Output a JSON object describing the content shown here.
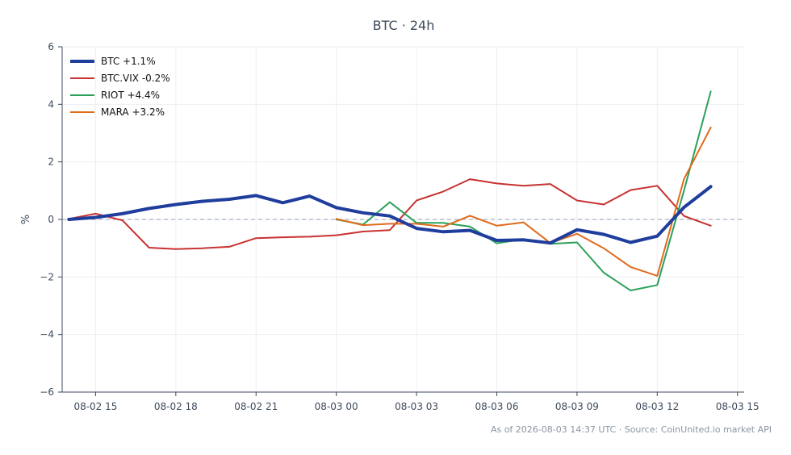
{
  "chart_data": {
    "type": "line",
    "title": "BTC · 24h",
    "xlabel": "",
    "ylabel": "%",
    "ylim": [
      -6,
      6
    ],
    "yticks": [
      -6,
      -4,
      -2,
      0,
      2,
      4,
      6
    ],
    "ytick_labels": [
      "−6",
      "−4",
      "−2",
      "0",
      "2",
      "4",
      "6"
    ],
    "xlim": [
      "2026-08-02 13:45",
      "2026-08-03 15:15"
    ],
    "xticks": [
      "2026-08-02 15:00",
      "2026-08-02 18:00",
      "2026-08-02 21:00",
      "2026-08-03 00:00",
      "2026-08-03 03:00",
      "2026-08-03 06:00",
      "2026-08-03 09:00",
      "2026-08-03 12:00",
      "2026-08-03 15:00"
    ],
    "xtick_labels": [
      "08-02 15",
      "08-02 18",
      "08-02 21",
      "08-03 00",
      "08-03 03",
      "08-03 06",
      "08-03 09",
      "08-03 12",
      "08-03 15"
    ],
    "grid": true,
    "zero_line": true,
    "legend_position": "top-left",
    "series": [
      {
        "name": "BTC +1.1%",
        "color": "#1f3d9c",
        "emphasis": true,
        "x": [
          "2026-08-02 14:00",
          "2026-08-02 15:00",
          "2026-08-02 16:00",
          "2026-08-02 17:00",
          "2026-08-02 18:00",
          "2026-08-02 19:00",
          "2026-08-02 20:00",
          "2026-08-02 21:00",
          "2026-08-02 22:00",
          "2026-08-02 23:00",
          "2026-08-03 00:00",
          "2026-08-03 01:00",
          "2026-08-03 02:00",
          "2026-08-03 03:00",
          "2026-08-03 04:00",
          "2026-08-03 05:00",
          "2026-08-03 06:00",
          "2026-08-03 07:00",
          "2026-08-03 08:00",
          "2026-08-03 09:00",
          "2026-08-03 10:00",
          "2026-08-03 11:00",
          "2026-08-03 12:00",
          "2026-08-03 13:00",
          "2026-08-03 14:00"
        ],
        "values": [
          0.0,
          0.07,
          0.2,
          0.38,
          0.52,
          0.63,
          0.7,
          0.83,
          0.58,
          0.81,
          0.41,
          0.23,
          0.12,
          -0.31,
          -0.43,
          -0.38,
          -0.73,
          -0.71,
          -0.82,
          -0.36,
          -0.52,
          -0.8,
          -0.58,
          0.42,
          1.14
        ]
      },
      {
        "name": "BTC.VIX -0.2%",
        "color": "#c83232",
        "x": [
          "2026-08-02 14:00",
          "2026-08-02 15:00",
          "2026-08-02 16:00",
          "2026-08-02 17:00",
          "2026-08-02 18:00",
          "2026-08-02 19:00",
          "2026-08-02 20:00",
          "2026-08-02 21:00",
          "2026-08-02 22:00",
          "2026-08-02 23:00",
          "2026-08-03 00:00",
          "2026-08-03 01:00",
          "2026-08-03 02:00",
          "2026-08-03 03:00",
          "2026-08-03 04:00",
          "2026-08-03 05:00",
          "2026-08-03 06:00",
          "2026-08-03 07:00",
          "2026-08-03 08:00",
          "2026-08-03 09:00",
          "2026-08-03 10:00",
          "2026-08-03 11:00",
          "2026-08-03 12:00",
          "2026-08-03 13:00",
          "2026-08-03 14:00"
        ],
        "values": [
          0.02,
          0.2,
          -0.03,
          -0.98,
          -1.03,
          -1.0,
          -0.95,
          -0.65,
          -0.62,
          -0.6,
          -0.55,
          -0.42,
          -0.37,
          0.66,
          0.97,
          1.4,
          1.25,
          1.17,
          1.23,
          0.66,
          0.52,
          1.02,
          1.17,
          0.12,
          -0.22
        ]
      },
      {
        "name": "RIOT +4.4%",
        "color": "#2ca05a",
        "x": [
          "2026-08-03 00:00",
          "2026-08-03 01:00",
          "2026-08-03 02:00",
          "2026-08-03 03:00",
          "2026-08-03 04:00",
          "2026-08-03 05:00",
          "2026-08-03 06:00",
          "2026-08-03 07:00",
          "2026-08-03 08:00",
          "2026-08-03 09:00",
          "2026-08-03 10:00",
          "2026-08-03 11:00",
          "2026-08-03 12:00",
          "2026-08-03 13:00",
          "2026-08-03 14:00"
        ],
        "values": [
          0.0,
          -0.18,
          0.6,
          -0.12,
          -0.12,
          -0.25,
          -0.83,
          -0.68,
          -0.85,
          -0.8,
          -1.85,
          -2.47,
          -2.28,
          1.0,
          4.45
        ]
      },
      {
        "name": "MARA +3.2%",
        "color": "#e06a1c",
        "x": [
          "2026-08-03 00:00",
          "2026-08-03 01:00",
          "2026-08-03 02:00",
          "2026-08-03 03:00",
          "2026-08-03 04:00",
          "2026-08-03 05:00",
          "2026-08-03 06:00",
          "2026-08-03 07:00",
          "2026-08-03 08:00",
          "2026-08-03 09:00",
          "2026-08-03 10:00",
          "2026-08-03 11:00",
          "2026-08-03 12:00",
          "2026-08-03 13:00",
          "2026-08-03 14:00"
        ],
        "values": [
          0.02,
          -0.2,
          -0.15,
          -0.15,
          -0.25,
          0.13,
          -0.22,
          -0.1,
          -0.82,
          -0.5,
          -1.0,
          -1.65,
          -1.96,
          1.4,
          3.2
        ]
      }
    ]
  },
  "footer": {
    "text": "As of 2026-08-03 14:37 UTC · Source: CoinUnited.io market API"
  }
}
